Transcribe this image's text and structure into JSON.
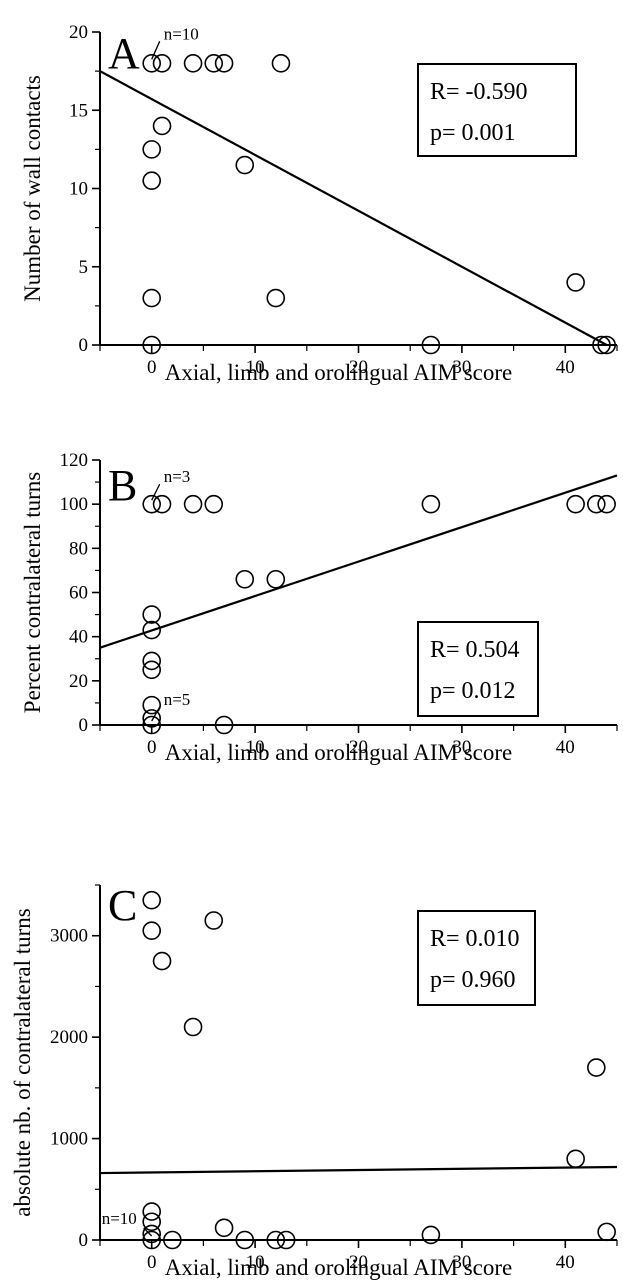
{
  "chart_data": [
    {
      "type": "scatter",
      "panel": "A",
      "xlabel": "Axial, limb and orolingual AIM score",
      "ylabel": "Number of wall contacts",
      "xlim": [
        -5,
        45
      ],
      "ylim": [
        0,
        20
      ],
      "x_ticks": [
        "0",
        "10",
        "20",
        "30",
        "40"
      ],
      "y_ticks": [
        "0",
        "5",
        "10",
        "15",
        "20"
      ],
      "stats": {
        "r": "R= -0.590",
        "p": "p= 0.001"
      },
      "annotations": [
        {
          "text": "n=10",
          "x": 0,
          "y": 18
        }
      ],
      "points": [
        {
          "x": 0,
          "y": 18
        },
        {
          "x": 1,
          "y": 18
        },
        {
          "x": 4,
          "y": 18
        },
        {
          "x": 6,
          "y": 18
        },
        {
          "x": 7,
          "y": 18
        },
        {
          "x": 12.5,
          "y": 18
        },
        {
          "x": 1,
          "y": 14
        },
        {
          "x": 0,
          "y": 12.5
        },
        {
          "x": 0,
          "y": 10.5
        },
        {
          "x": 9,
          "y": 11.5
        },
        {
          "x": 0,
          "y": 3
        },
        {
          "x": 12,
          "y": 3
        },
        {
          "x": 0,
          "y": 0
        },
        {
          "x": 27,
          "y": 0
        },
        {
          "x": 41,
          "y": 4
        },
        {
          "x": 43.5,
          "y": 0
        },
        {
          "x": 44,
          "y": 0
        }
      ],
      "regression": [
        {
          "x": -5,
          "y": 17.5
        },
        {
          "x": 44,
          "y": 0
        }
      ],
      "grid": false
    },
    {
      "type": "scatter",
      "panel": "B",
      "xlabel": "Axial, limb and orolingual AIM score",
      "ylabel": "Percent contralateral turns",
      "xlim": [
        -5,
        45
      ],
      "ylim": [
        0,
        120
      ],
      "x_ticks": [
        "0",
        "10",
        "20",
        "30",
        "40"
      ],
      "y_ticks": [
        "0",
        "20",
        "40",
        "60",
        "80",
        "100",
        "120"
      ],
      "stats": {
        "r": "R= 0.504",
        "p": "p= 0.012"
      },
      "annotations": [
        {
          "text": "n=3",
          "x": 0,
          "y": 100
        },
        {
          "text": "n=5",
          "x": 0,
          "y": 0
        }
      ],
      "points": [
        {
          "x": 0,
          "y": 100
        },
        {
          "x": 1,
          "y": 100
        },
        {
          "x": 4,
          "y": 100
        },
        {
          "x": 6,
          "y": 100
        },
        {
          "x": 27,
          "y": 100
        },
        {
          "x": 41,
          "y": 100
        },
        {
          "x": 43,
          "y": 100
        },
        {
          "x": 44,
          "y": 100
        },
        {
          "x": 9,
          "y": 66
        },
        {
          "x": 12,
          "y": 66
        },
        {
          "x": 0,
          "y": 50
        },
        {
          "x": 0,
          "y": 43
        },
        {
          "x": 0,
          "y": 29
        },
        {
          "x": 0,
          "y": 25
        },
        {
          "x": 0,
          "y": 9
        },
        {
          "x": 0,
          "y": 3
        },
        {
          "x": 0,
          "y": 0
        },
        {
          "x": 7,
          "y": 0
        }
      ],
      "regression": [
        {
          "x": -5,
          "y": 35
        },
        {
          "x": 45,
          "y": 113
        }
      ],
      "grid": false
    },
    {
      "type": "scatter",
      "panel": "C",
      "xlabel": "Axial, limb and orolingual AIM score",
      "ylabel": "absolute nb. of contralateral turns",
      "xlim": [
        -5,
        45
      ],
      "ylim": [
        0,
        3500
      ],
      "x_ticks": [
        "0",
        "10",
        "20",
        "30",
        "40"
      ],
      "y_ticks": [
        "0",
        "1000",
        "2000",
        "3000"
      ],
      "stats": {
        "r": "R= 0.010",
        "p": "p= 0.960"
      },
      "annotations": [
        {
          "text": "n=10",
          "x": 0,
          "y": 0
        }
      ],
      "points": [
        {
          "x": 0,
          "y": 3350
        },
        {
          "x": 0,
          "y": 3050
        },
        {
          "x": 1,
          "y": 2750
        },
        {
          "x": 6,
          "y": 3150
        },
        {
          "x": 4,
          "y": 2100
        },
        {
          "x": 43,
          "y": 1700
        },
        {
          "x": 41,
          "y": 800
        },
        {
          "x": 0,
          "y": 280
        },
        {
          "x": 0,
          "y": 180
        },
        {
          "x": 0,
          "y": 60
        },
        {
          "x": 0,
          "y": 0
        },
        {
          "x": 2,
          "y": 0
        },
        {
          "x": 7,
          "y": 120
        },
        {
          "x": 9,
          "y": 0
        },
        {
          "x": 12,
          "y": 0
        },
        {
          "x": 13,
          "y": 0
        },
        {
          "x": 27,
          "y": 50
        },
        {
          "x": 44,
          "y": 80
        }
      ],
      "regression": [
        {
          "x": -5,
          "y": 660
        },
        {
          "x": 45,
          "y": 720
        }
      ],
      "grid": false
    }
  ]
}
